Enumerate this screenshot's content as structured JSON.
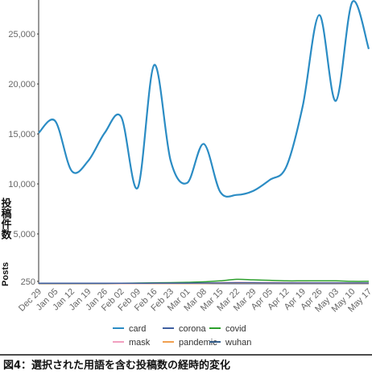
{
  "chart_data": {
    "type": "line",
    "caption": "図4：選択された用語を含む投稿数の経時的変化",
    "y_label": "投稿件数",
    "y_label_en": "Posts",
    "categories": [
      "Dec 29",
      "Jan 05",
      "Jan 12",
      "Jan 19",
      "Jan 26",
      "Feb 02",
      "Feb 09",
      "Feb 16",
      "Feb 23",
      "Mar 01",
      "Mar 08",
      "Mar 15",
      "Mar 22",
      "Mar 29",
      "Apr 05",
      "Apr 12",
      "Apr 19",
      "Apr 26",
      "May 03",
      "May 10",
      "May 17"
    ],
    "ylim": [
      0,
      28400
    ],
    "yticks": [
      250,
      {
        "value": 5000,
        "label": "5,000"
      },
      {
        "value": 10000,
        "label": "10,000"
      },
      {
        "value": 15000,
        "label": "15,000"
      },
      {
        "value": 20000,
        "label": "20,000"
      },
      {
        "value": 25000,
        "label": "25,000"
      }
    ],
    "series": [
      {
        "name": "card",
        "color": "#2b8cc4",
        "values": [
          15100,
          16300,
          11300,
          12300,
          15100,
          16700,
          9600,
          21900,
          12300,
          10100,
          14000,
          9200,
          8900,
          9300,
          10400,
          11700,
          17800,
          26900,
          18300,
          28200,
          23500
        ]
      },
      {
        "name": "corona",
        "color": "#3f5fa0",
        "values": [
          60,
          60,
          60,
          60,
          60,
          60,
          60,
          70,
          70,
          70,
          80,
          90,
          100,
          100,
          90,
          90,
          90,
          90,
          90,
          80,
          80
        ]
      },
      {
        "name": "covid",
        "color": "#2ca02c",
        "values": [
          50,
          50,
          50,
          50,
          50,
          60,
          80,
          100,
          120,
          150,
          200,
          300,
          450,
          400,
          350,
          300,
          300,
          300,
          300,
          250,
          250
        ]
      },
      {
        "name": "mask",
        "color": "#f2a0c0",
        "values": [
          40,
          40,
          40,
          40,
          40,
          40,
          40,
          50,
          50,
          60,
          80,
          120,
          150,
          140,
          130,
          120,
          120,
          110,
          110,
          100,
          100
        ]
      },
      {
        "name": "pandemic",
        "color": "#f0a050",
        "values": [
          20,
          20,
          20,
          20,
          20,
          20,
          20,
          20,
          20,
          20,
          30,
          50,
          60,
          60,
          50,
          50,
          50,
          50,
          50,
          40,
          40
        ]
      },
      {
        "name": "wuhan",
        "color": "#355f8c",
        "values": [
          10,
          10,
          10,
          10,
          10,
          20,
          40,
          60,
          50,
          40,
          40,
          30,
          30,
          30,
          20,
          20,
          20,
          20,
          20,
          20,
          20
        ]
      }
    ]
  }
}
